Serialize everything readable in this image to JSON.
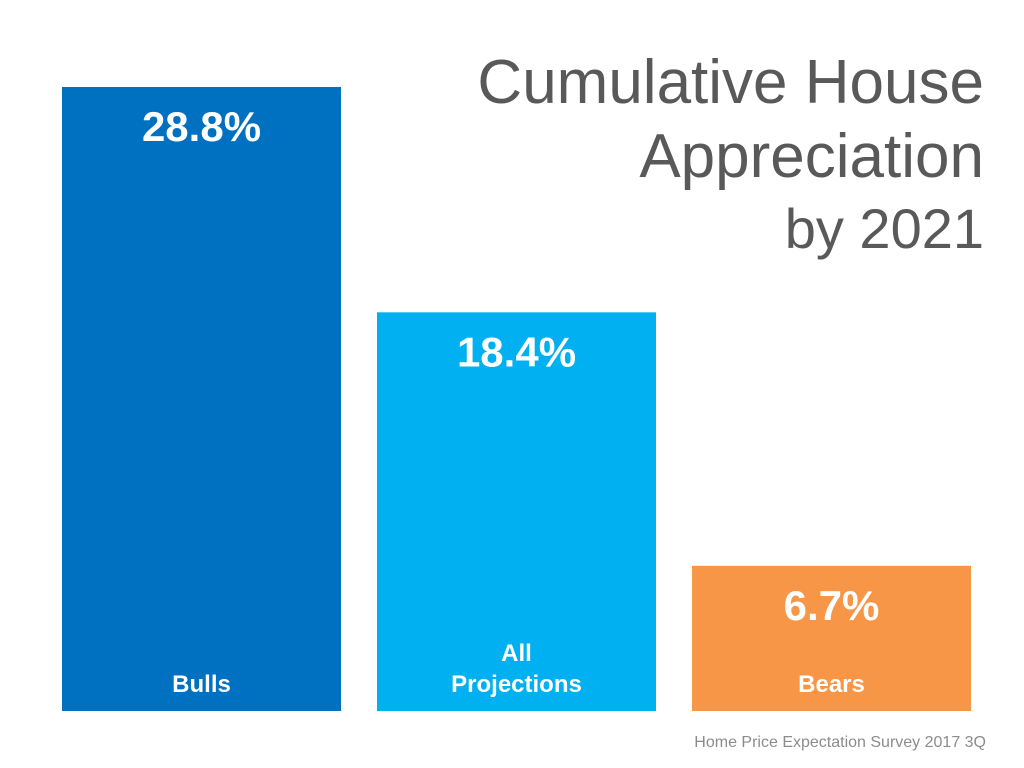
{
  "title_lines": [
    "Cumulative House",
    "Appreciation",
    "by 2021"
  ],
  "source": "Home Price Expectation Survey 2017 3Q",
  "chart_data": {
    "type": "bar",
    "title": "Cumulative House Appreciation by 2021",
    "categories": [
      "Bulls",
      "All Projections",
      "Bears"
    ],
    "category_label_lines": [
      [
        "Bulls"
      ],
      [
        "All",
        "Projections"
      ],
      [
        "Bears"
      ]
    ],
    "values": [
      28.8,
      18.4,
      6.7
    ],
    "data_labels": [
      "28.8%",
      "18.4%",
      "6.7%"
    ],
    "colors": [
      "#0070c0",
      "#00b0f0",
      "#f79646"
    ],
    "ylim": [
      0,
      28.8
    ],
    "grid": false,
    "legend": "none",
    "xlabel": "",
    "ylabel": ""
  }
}
